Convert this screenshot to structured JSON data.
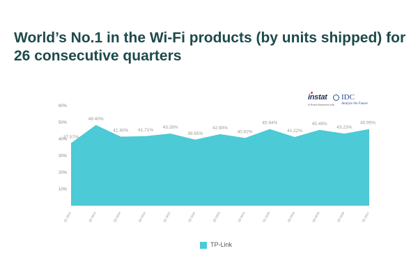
{
  "page": {
    "title": "World’s No.1 in the Wi-Fi products (by units shipped) for 26 consecutive quarters"
  },
  "logos": {
    "instat": {
      "name": "instat",
      "subtitle": "A Reed Business info"
    },
    "idc": {
      "name": "IDC",
      "tagline": "Analyze the Future"
    }
  },
  "colors": {
    "title": "#1e4a4a",
    "area_fill": "#4ccad6",
    "highlight_label": "#39b9c9",
    "instat_text": "#1d3557",
    "instat_mark": "#e63946",
    "idc_text": "#2a4a92"
  },
  "chart_data": {
    "type": "area",
    "title": "",
    "xlabel": "",
    "ylabel": "",
    "ylim": [
      0,
      60
    ],
    "yticks": [
      10,
      20,
      30,
      40,
      50,
      60
    ],
    "ytick_labels": [
      "10%",
      "20%",
      "30%",
      "40%",
      "50%",
      "60%"
    ],
    "grid": false,
    "categories": [
      "Q1 2014",
      "Q2 2014",
      "Q3 2014",
      "Q4 2014",
      "Q1 2015",
      "Q2 2015",
      "Q3 2015",
      "Q4 2015",
      "Q1 2016",
      "Q2 2016",
      "Q3 2016",
      "Q4 2016",
      "Q1 2017"
    ],
    "series": [
      {
        "name": "TP-Link",
        "values": [
          37.57,
          48.4,
          41.4,
          41.71,
          43.26,
          39.65,
          42.9,
          40.62,
          45.94,
          41.22,
          45.49,
          43.23,
          45.95
        ],
        "labels": [
          "37.57%",
          "48.40%",
          "41.40%",
          "41.71%",
          "43.26%",
          "39.65%",
          "42.90%",
          "40.62%",
          "45.94%",
          "41.22%",
          "45.49%",
          "43.23%",
          "45.95%"
        ]
      }
    ],
    "legend": {
      "position": "bottom-center",
      "label": "TP-Link"
    }
  }
}
